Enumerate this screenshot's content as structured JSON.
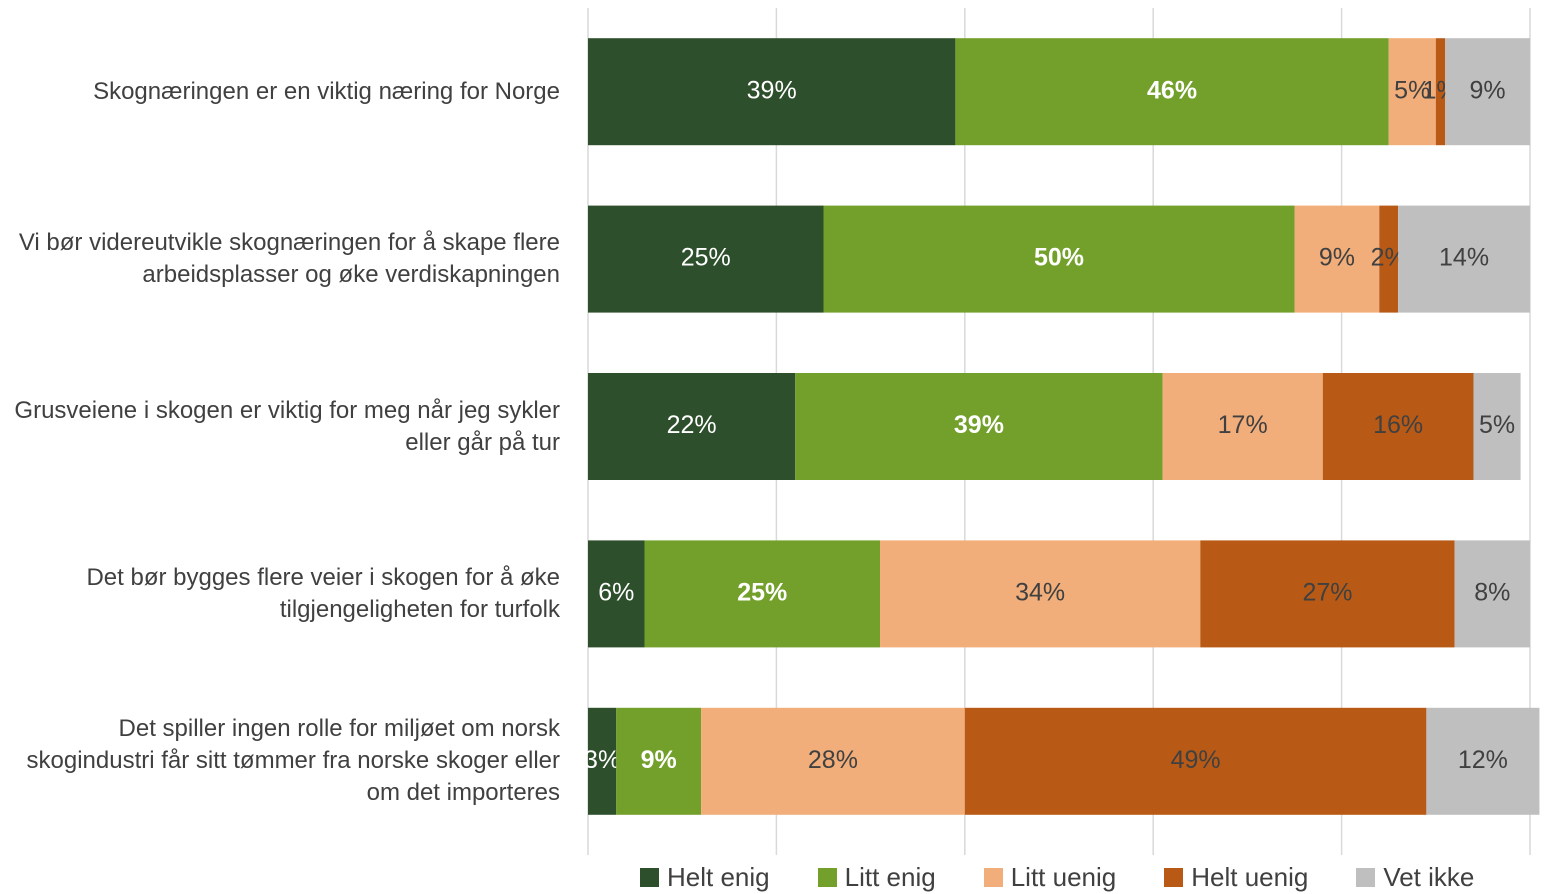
{
  "chart_data": {
    "type": "bar",
    "orientation": "horizontal",
    "stacked": true,
    "categories": [
      "Skognæringen er en viktig næring for Norge",
      "Vi bør videreutvikle skognæringen for å skape flere arbeidsplasser og øke verdiskapningen",
      "Grusveiene i skogen er viktig for meg når jeg sykler eller går på tur",
      "Det bør bygges flere veier i skogen for å øke tilgjengeligheten for turfolk",
      "Det spiller ingen rolle for miljøet om norsk skogindustri får sitt tømmer fra norske skoger eller om det importeres"
    ],
    "series": [
      {
        "name": "Helt enig",
        "color": "#2e4f2b",
        "label_color": "#ffffff",
        "label_bold": false,
        "values": [
          39,
          25,
          22,
          6,
          3
        ],
        "value_labels": [
          "39%",
          "25%",
          "22%",
          "6%",
          "3%"
        ]
      },
      {
        "name": "Litt enig",
        "color": "#72a02a",
        "label_color": "#ffffff",
        "label_bold": true,
        "values": [
          46,
          50,
          39,
          25,
          9
        ],
        "value_labels": [
          "46%",
          "50%",
          "39%",
          "25%",
          "9%"
        ]
      },
      {
        "name": "Litt uenig",
        "color": "#f2ae7a",
        "label_color": "#404040",
        "label_bold": false,
        "values": [
          5,
          9,
          17,
          34,
          28
        ],
        "value_labels": [
          "5%",
          "9%",
          "17%",
          "34%",
          "28%"
        ]
      },
      {
        "name": "Helt uenig",
        "color": "#b85a16",
        "label_color": "#404040",
        "label_bold": false,
        "values": [
          1,
          2,
          16,
          27,
          49
        ],
        "value_labels": [
          "1%",
          "2%",
          "16%",
          "27%",
          "49%"
        ]
      },
      {
        "name": "Vet ikke",
        "color": "#bfbfbf",
        "label_color": "#404040",
        "label_bold": false,
        "values": [
          9,
          14,
          5,
          8,
          12
        ],
        "value_labels": [
          "9%",
          "14%",
          "5%",
          "8%",
          "12%"
        ]
      }
    ],
    "xlim": [
      0,
      100
    ],
    "xticks": [
      0,
      20,
      40,
      60,
      80,
      100
    ],
    "grid": true,
    "legend": "bottom"
  }
}
